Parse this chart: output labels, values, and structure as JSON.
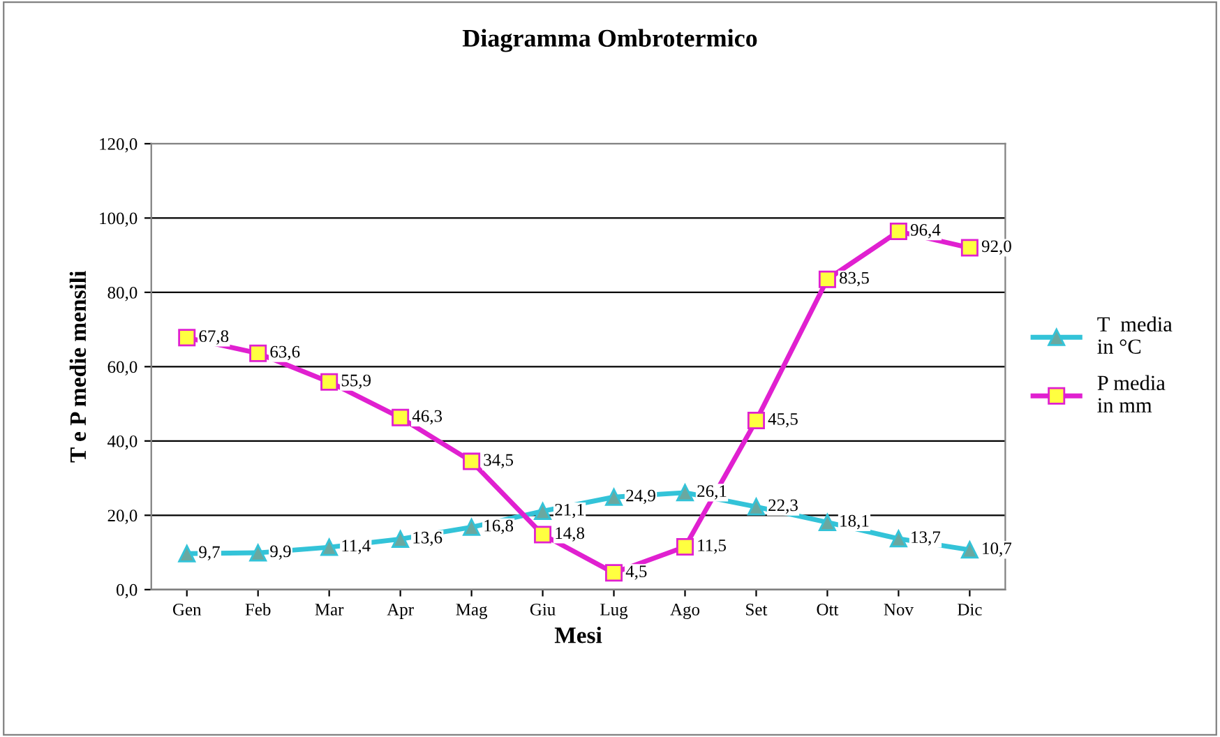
{
  "chart_data": {
    "type": "line",
    "title": "Diagramma Ombrotermico",
    "xlabel": "Mesi",
    "ylabel": "T e P medie mensili",
    "categories": [
      "Gen",
      "Feb",
      "Mar",
      "Apr",
      "Mag",
      "Giu",
      "Lug",
      "Ago",
      "Set",
      "Ott",
      "Nov",
      "Dic"
    ],
    "series": [
      {
        "name": "T  media\nin °C",
        "color": "#33c3d8",
        "marker": "triangle",
        "values": [
          9.7,
          9.9,
          11.4,
          13.6,
          16.8,
          21.1,
          24.9,
          26.1,
          22.3,
          18.1,
          13.7,
          10.7
        ],
        "value_labels": [
          "9,7",
          "9,9",
          "11,4",
          "13,6",
          "16,8",
          "21,1",
          "24,9",
          "26,1",
          "22,3",
          "18,1",
          "13,7",
          "10,7"
        ]
      },
      {
        "name": "P media\nin mm",
        "color": "#e020d0",
        "marker": "square",
        "values": [
          67.8,
          63.6,
          55.9,
          46.3,
          34.5,
          14.8,
          4.5,
          11.5,
          45.5,
          83.5,
          96.4,
          92.0
        ],
        "value_labels": [
          "67,8",
          "63,6",
          "55,9",
          "46,3",
          "34,5",
          "14,8",
          "4,5",
          "11,5",
          "45,5",
          "83,5",
          "96,4",
          "92,0"
        ]
      }
    ],
    "ylim": [
      0,
      120
    ],
    "yticks": [
      {
        "value": 0,
        "label": "0,0"
      },
      {
        "value": 20,
        "label": "20,0"
      },
      {
        "value": 40,
        "label": "40,0"
      },
      {
        "value": 60,
        "label": "60,0"
      },
      {
        "value": 80,
        "label": "80,0"
      },
      {
        "value": 100,
        "label": "100,0"
      },
      {
        "value": 120,
        "label": "120,0"
      }
    ],
    "grid": "y",
    "legend": "right",
    "line_style": "solid"
  }
}
